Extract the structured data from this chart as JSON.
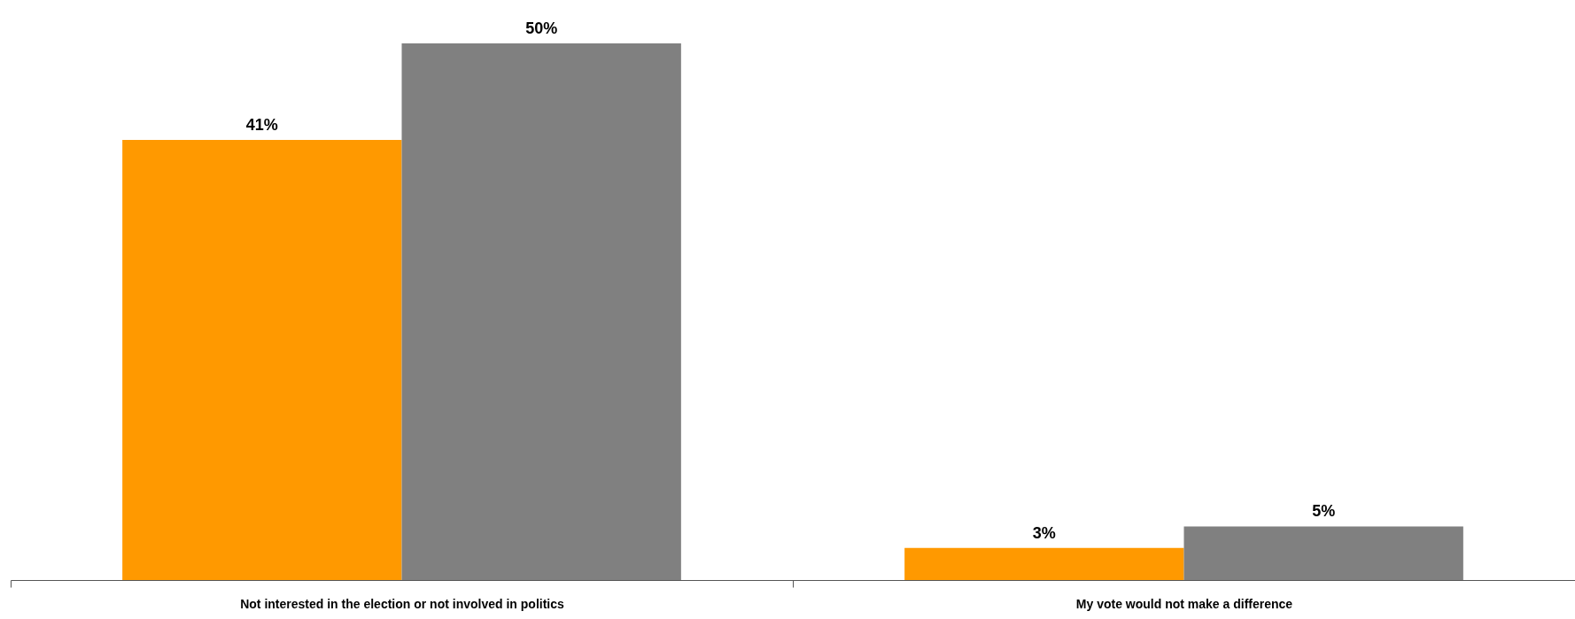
{
  "chart_data": {
    "type": "bar",
    "categories": [
      "Not interested in the election or not involved in politics",
      "My vote would not make a difference"
    ],
    "series": [
      {
        "color": "#ff9900",
        "values": [
          41,
          3
        ],
        "value_labels": [
          "41%",
          "3%"
        ]
      },
      {
        "color": "#808080",
        "values": [
          50,
          5
        ],
        "value_labels": [
          "50%",
          "5%"
        ]
      }
    ],
    "grid": false,
    "legend": false,
    "tick_labels": "x"
  }
}
